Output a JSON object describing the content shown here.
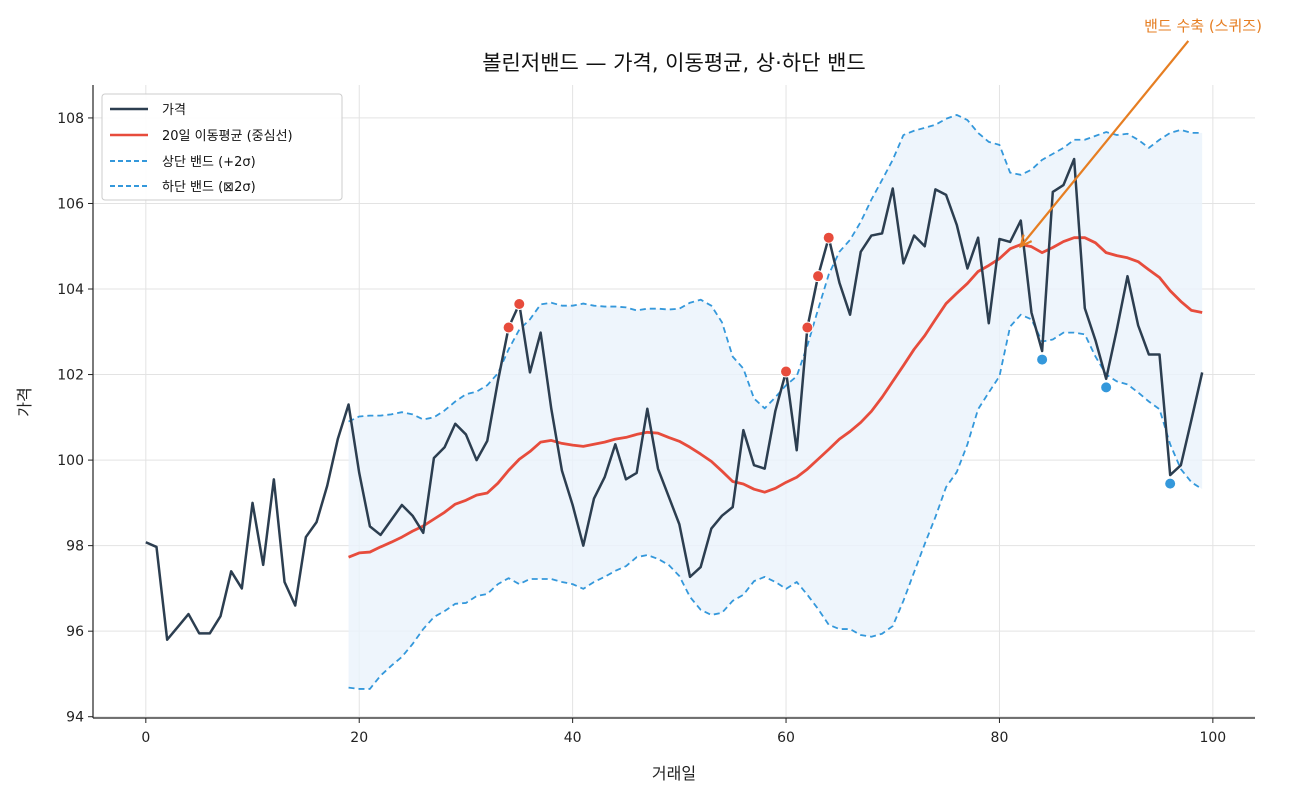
{
  "chart_data": {
    "type": "line",
    "title": "볼린저밴드 — 가격, 이동평균, 상·하단 밴드",
    "xlabel": "거래일",
    "ylabel": "가격",
    "xlim": [
      -4.95,
      103.95
    ],
    "ylim": [
      93.97,
      108.77
    ],
    "xticks": [
      0,
      20,
      40,
      60,
      80,
      100
    ],
    "yticks": [
      94,
      96,
      98,
      100,
      102,
      104,
      106,
      108
    ],
    "grid": true,
    "legend_position": "top-left",
    "colors": {
      "price": "#2c3e50",
      "ma": "#e74c3c",
      "band": "#3498db",
      "fill": "#eaf3fb",
      "annotation": "#e67e22",
      "upper_break": "#e74c3c",
      "lower_break": "#3498db"
    },
    "series": [
      {
        "name": "가격",
        "x_start": 0,
        "values": [
          98.08,
          97.97,
          95.8,
          96.1,
          96.4,
          95.95,
          95.95,
          96.35,
          97.4,
          97.0,
          99.0,
          97.55,
          99.55,
          97.15,
          96.6,
          98.2,
          98.55,
          99.4,
          100.5,
          101.3,
          99.7,
          98.45,
          98.25,
          98.6,
          98.95,
          98.7,
          98.3,
          100.05,
          100.3,
          100.85,
          100.6,
          100.0,
          100.45,
          101.85,
          103.1,
          103.65,
          102.05,
          102.98,
          101.2,
          99.75,
          98.95,
          98.0,
          99.1,
          99.6,
          100.37,
          99.55,
          99.7,
          101.2,
          99.8,
          99.15,
          98.5,
          97.27,
          97.5,
          98.4,
          98.7,
          98.9,
          100.7,
          99.88,
          99.8,
          101.15,
          102.07,
          100.23,
          103.1,
          104.3,
          105.2,
          104.15,
          103.4,
          104.87,
          105.25,
          105.3,
          106.35,
          104.6,
          105.25,
          105.0,
          106.33,
          106.2,
          105.5,
          104.48,
          105.2,
          103.2,
          105.17,
          105.1,
          105.6,
          103.45,
          102.55,
          106.27,
          106.43,
          107.04,
          103.55,
          102.8,
          101.9,
          103.05,
          104.3,
          103.15,
          102.47,
          102.47,
          99.65,
          99.88,
          100.95,
          102.05
        ]
      },
      {
        "name": "20일 이동평균 (중심선)",
        "x_start": 19,
        "values": [
          97.73,
          97.83,
          97.85,
          97.97,
          98.08,
          98.2,
          98.34,
          98.46,
          98.62,
          98.78,
          98.97,
          99.06,
          99.18,
          99.23,
          99.46,
          99.76,
          100.02,
          100.2,
          100.42,
          100.46,
          100.39,
          100.35,
          100.32,
          100.37,
          100.42,
          100.49,
          100.53,
          100.6,
          100.65,
          100.63,
          100.53,
          100.44,
          100.3,
          100.14,
          99.97,
          99.74,
          99.5,
          99.44,
          99.32,
          99.25,
          99.34,
          99.48,
          99.6,
          99.79,
          100.02,
          100.25,
          100.49,
          100.67,
          100.88,
          101.14,
          101.47,
          101.84,
          102.21,
          102.59,
          102.91,
          103.29,
          103.66,
          103.9,
          104.13,
          104.41,
          104.55,
          104.71,
          104.94,
          105.04,
          104.99,
          104.85,
          104.97,
          105.11,
          105.2,
          105.2,
          105.08,
          104.85,
          104.78,
          104.73,
          104.64,
          104.45,
          104.27,
          103.96,
          103.71,
          103.5,
          103.45
        ]
      },
      {
        "name": "상단 밴드 (+2σ)",
        "x_start": 19,
        "values": [
          100.9,
          101.02,
          101.04,
          101.04,
          101.07,
          101.12,
          101.07,
          100.95,
          101.0,
          101.16,
          101.37,
          101.54,
          101.6,
          101.75,
          102.03,
          102.59,
          103.05,
          103.29,
          103.64,
          103.68,
          103.61,
          103.61,
          103.66,
          103.61,
          103.59,
          103.59,
          103.57,
          103.5,
          103.54,
          103.54,
          103.52,
          103.54,
          103.68,
          103.75,
          103.61,
          103.22,
          102.42,
          102.14,
          101.44,
          101.21,
          101.47,
          101.75,
          101.96,
          102.68,
          103.52,
          104.34,
          104.87,
          105.15,
          105.57,
          106.09,
          106.55,
          107.02,
          107.6,
          107.7,
          107.77,
          107.84,
          107.98,
          108.07,
          107.95,
          107.65,
          107.44,
          107.37,
          106.72,
          106.67,
          106.79,
          107.02,
          107.16,
          107.3,
          107.49,
          107.49,
          107.58,
          107.67,
          107.6,
          107.63,
          107.49,
          107.3,
          107.49,
          107.65,
          107.72,
          107.65,
          107.65
        ]
      },
      {
        "name": "하단 밴드 (⊠2σ)",
        "x_start": 19,
        "values": [
          94.68,
          94.65,
          94.65,
          94.96,
          95.19,
          95.4,
          95.7,
          96.05,
          96.33,
          96.47,
          96.64,
          96.66,
          96.82,
          96.87,
          97.1,
          97.24,
          97.1,
          97.22,
          97.22,
          97.22,
          97.15,
          97.1,
          96.99,
          97.15,
          97.27,
          97.41,
          97.52,
          97.73,
          97.78,
          97.69,
          97.55,
          97.29,
          96.8,
          96.5,
          96.38,
          96.43,
          96.71,
          96.85,
          97.17,
          97.27,
          97.15,
          96.99,
          97.15,
          96.85,
          96.52,
          96.15,
          96.05,
          96.05,
          95.91,
          95.87,
          95.94,
          96.12,
          96.71,
          97.38,
          98.04,
          98.67,
          99.37,
          99.72,
          100.37,
          101.19,
          101.58,
          101.96,
          103.12,
          103.4,
          103.29,
          102.77,
          102.82,
          102.98,
          102.98,
          102.94,
          102.42,
          102.0,
          101.84,
          101.77,
          101.58,
          101.37,
          101.19,
          100.37,
          99.79,
          99.48,
          99.32
        ]
      }
    ],
    "upper_break_points": [
      34,
      35,
      60,
      62,
      63,
      64
    ],
    "lower_break_points": [
      84,
      90,
      96
    ],
    "annotation": {
      "text": "밴드 수축 (스퀴즈)",
      "xy": [
        82,
        105.0
      ],
      "xytext": [
        97.7,
        109.8
      ]
    }
  }
}
